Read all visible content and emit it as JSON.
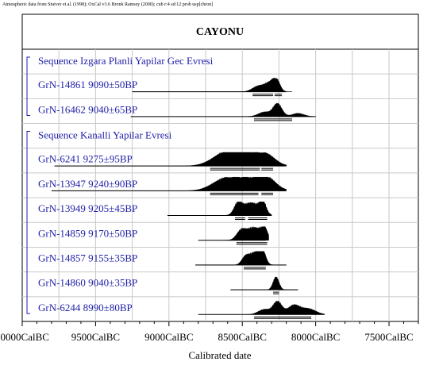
{
  "credit": "Atmospheric data from Stuiver et al. (1998); OxCal v3.6 Bronk Ramsey (2000); cub r:4 sd:12 prob usp[chron]",
  "chart_data": {
    "type": "oxcal-multiplot",
    "title": "CAYONU",
    "xlabel": "Calibrated date",
    "x_axis": {
      "ticks": [
        "10000CalBC",
        "9500CalBC",
        "9000CalBC",
        "8500CalBC",
        "8000CalBC",
        "7500CalBC"
      ],
      "tick_values": [
        10000,
        9500,
        9000,
        8500,
        8000,
        7500
      ],
      "xlim": [
        10000,
        7300
      ],
      "grid": true
    },
    "rows": [
      {
        "kind": "sequence",
        "label": "Sequence Izgara Planli Yapilar Gec Evresi"
      },
      {
        "kind": "date",
        "label": "GrN-14861  9090±50BP",
        "range": [
          9250,
          8200
        ],
        "peaks": [
          {
            "c": 8390,
            "w": 40,
            "h": 0.45
          },
          {
            "c": 8270,
            "w": 25,
            "h": 1.0
          },
          {
            "c": 8320,
            "w": 30,
            "h": 0.55
          }
        ],
        "spread": [
          8450,
          8160
        ],
        "bars": [
          [
            8430,
            8290
          ],
          [
            8280,
            8230
          ]
        ]
      },
      {
        "kind": "date",
        "label": "GrN-16462  9040±65BP",
        "range": [
          9260,
          8000
        ],
        "peaks": [
          {
            "c": 8260,
            "w": 30,
            "h": 1.0
          },
          {
            "c": 8350,
            "w": 40,
            "h": 0.35
          },
          {
            "c": 8120,
            "w": 40,
            "h": 0.25
          }
        ],
        "spread": [
          8450,
          8020
        ],
        "bars": [
          [
            8420,
            8160
          ]
        ]
      },
      {
        "kind": "sequence",
        "label": "Sequence Kanalli Yapilar Evresi"
      },
      {
        "kind": "date",
        "label": "GrN-6241  9275±95BP",
        "range": [
          9780,
          8200
        ],
        "peaks": [
          {
            "c": 8620,
            "w": 90,
            "h": 0.85
          },
          {
            "c": 8470,
            "w": 100,
            "h": 1.0
          },
          {
            "c": 8330,
            "w": 60,
            "h": 0.6
          }
        ],
        "spread": [
          8740,
          8280
        ],
        "bars": [
          [
            8720,
            8380
          ],
          [
            8370,
            8290
          ]
        ]
      },
      {
        "kind": "date",
        "label": "GrN-13947  9240±90BP",
        "range": [
          9800,
          8200
        ],
        "peaks": [
          {
            "c": 8640,
            "w": 80,
            "h": 0.6
          },
          {
            "c": 8480,
            "w": 110,
            "h": 1.0
          },
          {
            "c": 8330,
            "w": 60,
            "h": 0.75
          }
        ],
        "spread": [
          8750,
          8280
        ],
        "bars": [
          [
            8720,
            8390
          ],
          [
            8370,
            8290
          ]
        ]
      },
      {
        "kind": "date",
        "label": "GrN-13949  9205±45BP",
        "range": [
          9010,
          8300
        ],
        "peaks": [
          {
            "c": 8530,
            "w": 25,
            "h": 0.8
          },
          {
            "c": 8440,
            "w": 60,
            "h": 1.0
          },
          {
            "c": 8360,
            "w": 20,
            "h": 0.9
          }
        ],
        "spread": [
          8560,
          8320
        ],
        "bars": [
          [
            8550,
            8480
          ],
          [
            8460,
            8330
          ]
        ]
      },
      {
        "kind": "date",
        "label": "GrN-14859  9170±50BP",
        "range": [
          8800,
          8340
        ],
        "peaks": [
          {
            "c": 8510,
            "w": 30,
            "h": 0.6
          },
          {
            "c": 8420,
            "w": 55,
            "h": 1.0
          },
          {
            "c": 8350,
            "w": 20,
            "h": 0.7
          }
        ],
        "spread": [
          8560,
          8320
        ],
        "bars": [
          [
            8540,
            8330
          ]
        ]
      },
      {
        "kind": "date",
        "label": "GrN-14857  9155±35BP",
        "range": [
          8820,
          8200
        ],
        "peaks": [
          {
            "c": 8480,
            "w": 25,
            "h": 0.55
          },
          {
            "c": 8410,
            "w": 40,
            "h": 1.0
          },
          {
            "c": 8360,
            "w": 20,
            "h": 0.8
          }
        ],
        "spread": [
          8500,
          8330
        ],
        "bars": [
          [
            8490,
            8340
          ]
        ]
      },
      {
        "kind": "date",
        "label": "GrN-14860  9040±35BP",
        "range": [
          8580,
          8120
        ],
        "peaks": [
          {
            "c": 8270,
            "w": 20,
            "h": 1.0
          }
        ],
        "spread": [
          8300,
          8240
        ],
        "bars": [
          [
            8290,
            8250
          ]
        ]
      },
      {
        "kind": "date",
        "label": "GrN-6244  8990±80BP",
        "range": [
          8800,
          7940
        ],
        "peaks": [
          {
            "c": 8260,
            "w": 30,
            "h": 1.0
          },
          {
            "c": 8150,
            "w": 40,
            "h": 0.7
          },
          {
            "c": 8050,
            "w": 50,
            "h": 0.45
          },
          {
            "c": 8350,
            "w": 40,
            "h": 0.4
          }
        ],
        "spread": [
          8450,
          7980
        ],
        "bars": [
          [
            8420,
            8030
          ]
        ]
      }
    ]
  }
}
